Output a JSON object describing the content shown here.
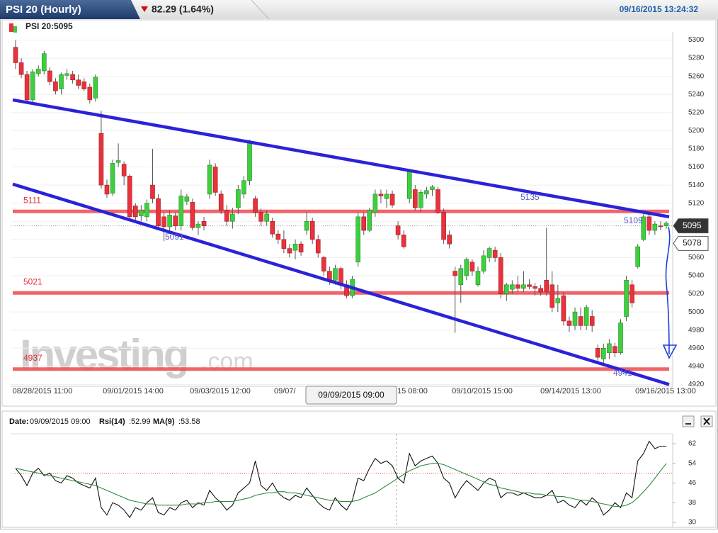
{
  "header": {
    "title": "PSI 20 (Hourly)",
    "change": "82.29 (1.64%)",
    "timestamp": "09/16/2015 13:24:32"
  },
  "chart_data": [
    {
      "type": "candlestick",
      "title": "PSI 20:5095",
      "candles": [
        [
          5292,
          5300,
          5268,
          5275
        ],
        [
          5275,
          5280,
          5258,
          5262
        ],
        [
          5262,
          5266,
          5232,
          5234
        ],
        [
          5234,
          5268,
          5230,
          5265
        ],
        [
          5263,
          5272,
          5260,
          5268
        ],
        [
          5266,
          5288,
          5262,
          5285
        ],
        [
          5266,
          5270,
          5250,
          5254
        ],
        [
          5254,
          5258,
          5240,
          5244
        ],
        [
          5246,
          5264,
          5240,
          5262
        ],
        [
          5261,
          5268,
          5256,
          5263
        ],
        [
          5262,
          5266,
          5252,
          5256
        ],
        [
          5256,
          5262,
          5246,
          5250
        ],
        [
          5254,
          5258,
          5244,
          5246
        ],
        [
          5248,
          5252,
          5230,
          5234
        ],
        [
          5236,
          5262,
          5232,
          5259
        ],
        [
          5197,
          5222,
          5136,
          5140
        ],
        [
          5140,
          5146,
          5126,
          5130
        ],
        [
          5131,
          5168,
          5128,
          5164
        ],
        [
          5165,
          5186,
          5160,
          5167
        ],
        [
          5163,
          5166,
          5140,
          5150
        ],
        [
          5150,
          5152,
          5100,
          5105
        ],
        [
          5117,
          5120,
          5100,
          5105
        ],
        [
          5106,
          5118,
          5100,
          5112
        ],
        [
          5105,
          5124,
          5100,
          5120
        ],
        [
          5140,
          5180,
          5120,
          5125
        ],
        [
          5125,
          5130,
          5090,
          5095
        ],
        [
          5105,
          5110,
          5078,
          5094
        ],
        [
          5094,
          5112,
          5090,
          5107
        ],
        [
          5106,
          5110,
          5090,
          5095
        ],
        [
          5095,
          5135,
          5090,
          5128
        ],
        [
          5122,
          5130,
          5118,
          5127
        ],
        [
          5121,
          5125,
          5090,
          5093
        ],
        [
          5093,
          5100,
          5085,
          5097
        ],
        [
          5100,
          5105,
          5090,
          5095
        ],
        [
          5130,
          5168,
          5125,
          5162
        ],
        [
          5160,
          5164,
          5128,
          5132
        ],
        [
          5130,
          5134,
          5108,
          5112
        ],
        [
          5112,
          5118,
          5095,
          5100
        ],
        [
          5100,
          5115,
          5092,
          5108
        ],
        [
          5115,
          5140,
          5108,
          5135
        ],
        [
          5130,
          5150,
          5125,
          5145
        ],
        [
          5145,
          5190,
          5140,
          5188
        ],
        [
          5125,
          5128,
          5105,
          5110
        ],
        [
          5110,
          5114,
          5095,
          5100
        ],
        [
          5100,
          5112,
          5095,
          5108
        ],
        [
          5100,
          5104,
          5082,
          5086
        ],
        [
          5086,
          5090,
          5075,
          5080
        ],
        [
          5080,
          5090,
          5065,
          5070
        ],
        [
          5070,
          5075,
          5060,
          5065
        ],
        [
          5068,
          5080,
          5058,
          5075
        ],
        [
          5075,
          5078,
          5062,
          5066
        ],
        [
          5090,
          5110,
          5085,
          5100
        ],
        [
          5100,
          5104,
          5075,
          5080
        ],
        [
          5080,
          5085,
          5060,
          5065
        ],
        [
          5060,
          5062,
          5040,
          5045
        ],
        [
          5045,
          5050,
          5030,
          5035
        ],
        [
          5035,
          5052,
          5030,
          5048
        ],
        [
          5048,
          5050,
          5025,
          5030
        ],
        [
          5030,
          5035,
          5015,
          5018
        ],
        [
          5018,
          5040,
          5015,
          5036
        ],
        [
          5055,
          5110,
          5050,
          5105
        ],
        [
          5105,
          5110,
          5085,
          5090
        ],
        [
          5090,
          5115,
          5088,
          5112
        ],
        [
          5110,
          5135,
          5105,
          5130
        ],
        [
          5130,
          5135,
          5120,
          5128
        ],
        [
          5125,
          5135,
          5115,
          5130
        ],
        [
          5130,
          5134,
          5115,
          5118
        ],
        [
          5095,
          5100,
          5080,
          5085
        ],
        [
          5085,
          5090,
          5070,
          5072
        ],
        [
          5125,
          5157,
          5120,
          5155
        ],
        [
          5135,
          5140,
          5112,
          5115
        ],
        [
          5115,
          5135,
          5110,
          5132
        ],
        [
          5130,
          5138,
          5125,
          5134
        ],
        [
          5135,
          5140,
          5128,
          5138
        ],
        [
          5135,
          5138,
          5108,
          5110
        ],
        [
          5110,
          5114,
          5075,
          5080
        ],
        [
          5085,
          5090,
          5070,
          5075
        ],
        [
          5045,
          5050,
          4977,
          5040
        ],
        [
          5030,
          5052,
          5010,
          5048
        ],
        [
          5040,
          5060,
          5035,
          5058
        ],
        [
          5055,
          5058,
          5040,
          5045
        ],
        [
          5030,
          5050,
          5028,
          5045
        ],
        [
          5045,
          5068,
          5042,
          5062
        ],
        [
          5060,
          5072,
          5055,
          5070
        ],
        [
          5068,
          5072,
          5055,
          5060
        ],
        [
          5060,
          5065,
          5015,
          5020
        ],
        [
          5020,
          5032,
          5012,
          5030
        ],
        [
          5025,
          5035,
          5020,
          5030
        ],
        [
          5030,
          5040,
          5022,
          5026
        ],
        [
          5026,
          5045,
          5022,
          5030
        ],
        [
          5030,
          5036,
          5025,
          5028
        ],
        [
          5028,
          5032,
          5018,
          5026
        ],
        [
          5026,
          5030,
          5018,
          5022
        ],
        [
          5035,
          5093,
          5018,
          5022
        ],
        [
          5030,
          5045,
          5000,
          5005
        ],
        [
          5010,
          5030,
          5000,
          5015
        ],
        [
          5018,
          5022,
          4985,
          4990
        ],
        [
          4990,
          4995,
          4978,
          4985
        ],
        [
          4985,
          5005,
          4980,
          5000
        ],
        [
          4995,
          5005,
          4980,
          4985
        ],
        [
          4985,
          5008,
          4980,
          5005
        ],
        [
          4995,
          5002,
          4978,
          4985
        ],
        [
          4960,
          4964,
          4945,
          4950
        ],
        [
          4948,
          4965,
          4940,
          4960
        ],
        [
          4955,
          4970,
          4948,
          4965
        ],
        [
          4962,
          4966,
          4950,
          4955
        ],
        [
          4955,
          4992,
          4953,
          4988
        ],
        [
          4995,
          5040,
          4990,
          5035
        ],
        [
          5030,
          5035,
          5005,
          5010
        ],
        [
          5050,
          5075,
          5048,
          5072
        ],
        [
          5080,
          5108,
          5078,
          5105
        ],
        [
          5105,
          5108,
          5085,
          5090
        ],
        [
          5090,
          5100,
          5085,
          5097
        ],
        [
          5095,
          5100,
          5090,
          5094
        ],
        [
          5095,
          5100,
          5092,
          5098
        ]
      ],
      "up_color": "#3ecf3e",
      "down_color": "#e8323c",
      "ylim": [
        4918,
        5309
      ],
      "yticks": [
        4920,
        4940,
        4960,
        4980,
        5000,
        5020,
        5040,
        5060,
        5080,
        5100,
        5120,
        5140,
        5160,
        5180,
        5200,
        5220,
        5240,
        5260,
        5280,
        5300
      ],
      "x_labels": [
        "08/28/2015 11:00",
        "09/01/2015 14:00",
        "09/03/2015 12:00",
        "09/07/",
        "15 08:00",
        "09/10/2015 15:00",
        "09/14/2015 13:00",
        "09/16/2015 13:00"
      ],
      "levels": [
        5111,
        5021,
        4937
      ],
      "level_color": "#f04a50",
      "trendlines": [
        {
          "start": 5234,
          "end": 5105
        },
        {
          "start": 5141,
          "end": 4920
        }
      ],
      "trendline_color": "#2b22d8",
      "annotations": [
        "5135",
        "5109",
        "5091",
        "4941"
      ],
      "price_labels": [
        5095,
        5078
      ],
      "tooltip": "09/09/2015 09:00",
      "watermark": [
        "Investing",
        ".com"
      ]
    },
    {
      "type": "line",
      "header": [
        "Date:",
        "09/09/2015 09:00",
        "Rsi(14)",
        ":52.99",
        "MA(9)",
        ":53.58"
      ],
      "series": [
        {
          "name": "Rsi(14)",
          "color": "#111111",
          "values": [
            52,
            49,
            45,
            50,
            52,
            49,
            50,
            47,
            46,
            49,
            48,
            46,
            45,
            44,
            48,
            36,
            33,
            38,
            37,
            35,
            32,
            36,
            35,
            38,
            40,
            34,
            33,
            36,
            35,
            38,
            39,
            36,
            38,
            37,
            43,
            40,
            38,
            35,
            37,
            42,
            44,
            46,
            55,
            45,
            43,
            46,
            42,
            40,
            39,
            41,
            40,
            44,
            41,
            38,
            36,
            35,
            40,
            37,
            35,
            39,
            48,
            47,
            52,
            56,
            54,
            55,
            53,
            48,
            46,
            58,
            53,
            55,
            56,
            57,
            54,
            48,
            46,
            40,
            44,
            47,
            45,
            43,
            46,
            48,
            47,
            40,
            42,
            42,
            41,
            42,
            41,
            40,
            40,
            41,
            43,
            38,
            39,
            37,
            36,
            39,
            37,
            40,
            38,
            33,
            35,
            38,
            36,
            42,
            40,
            55,
            58,
            63,
            60,
            61,
            61
          ]
        },
        {
          "name": "MA(9)",
          "color": "#2e8b3e",
          "values": [
            52,
            51.5,
            51,
            50.5,
            50,
            49.5,
            49,
            48.5,
            48,
            47.5,
            47,
            46.5,
            46,
            45.5,
            45,
            44,
            43,
            42,
            41,
            40,
            39,
            38.5,
            38,
            37.5,
            37.5,
            37,
            37,
            37,
            37,
            37,
            37.5,
            37.5,
            37.5,
            38,
            38,
            38.5,
            38.5,
            38.5,
            38.5,
            39,
            39.5,
            40,
            41,
            41.5,
            42,
            42,
            42.5,
            42.5,
            42,
            42,
            41.5,
            41,
            40.5,
            40,
            39.5,
            39,
            39,
            38.5,
            38.5,
            38.5,
            39,
            40,
            41,
            42,
            43.5,
            45,
            46.5,
            48,
            49.5,
            51,
            52,
            53,
            53.5,
            54,
            54,
            53.5,
            52.5,
            51.5,
            50.5,
            49.5,
            48.5,
            47.5,
            46.5,
            45.5,
            45,
            44,
            43.5,
            43,
            42.5,
            42,
            42,
            41.5,
            41.5,
            41,
            41,
            40.5,
            40.5,
            40,
            39.5,
            39,
            39,
            38.5,
            38,
            37.5,
            37,
            36.5,
            36.5,
            37,
            38,
            40,
            42.5,
            45,
            48,
            51,
            54
          ]
        }
      ],
      "ylim": [
        27.7,
        69.5
      ],
      "yticks": [
        30,
        38,
        46,
        54,
        62
      ],
      "reference": 50
    }
  ]
}
